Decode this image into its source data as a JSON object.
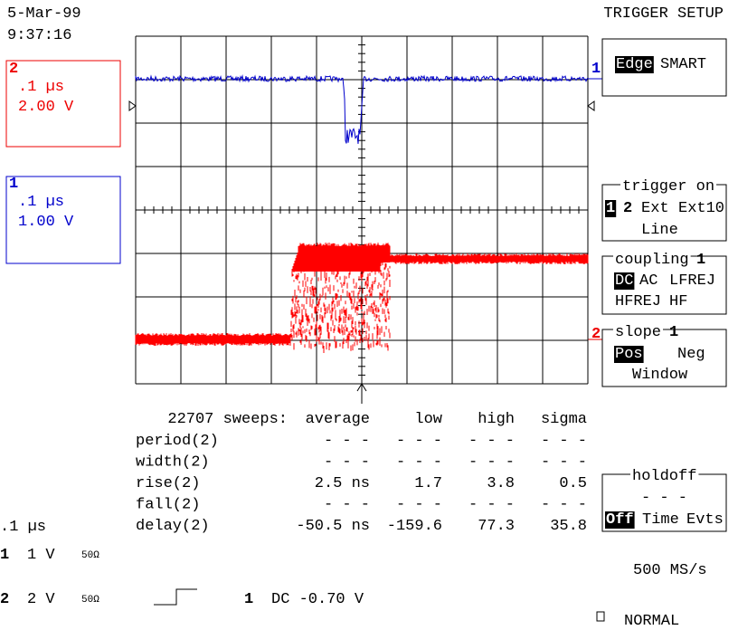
{
  "header": {
    "date": "5-Mar-99",
    "time": "9:37:16",
    "title": "TRIGGER SETUP"
  },
  "channels": [
    {
      "label": "2",
      "timebase": ".1 µs",
      "volts": "2.00 V"
    },
    {
      "label": "1",
      "timebase": ".1 µs",
      "volts": "1.00 V"
    }
  ],
  "trace_markers": [
    "1",
    "2"
  ],
  "menu": {
    "mode": {
      "selected": "Edge",
      "other": "SMART"
    },
    "trigger_on": {
      "title": "trigger on",
      "options": [
        "1",
        "2",
        "Ext",
        "Ext10",
        "Line"
      ]
    },
    "coupling": {
      "title": "coupling",
      "channel": "1",
      "options": [
        "DC",
        "AC",
        "LFREJ",
        "HFREJ",
        "HF"
      ]
    },
    "slope": {
      "title": "slope",
      "channel": "1",
      "options": [
        "Pos",
        "Neg",
        "Window"
      ]
    },
    "holdoff": {
      "title": "holdoff",
      "value": "- - -",
      "options": [
        "Off",
        "Time",
        "Evts"
      ]
    }
  },
  "measurements": {
    "header": [
      "22707 sweeps:",
      "average",
      "low",
      "high",
      "sigma"
    ],
    "rows": [
      [
        "period(2)",
        "- - -",
        "- - -",
        "- - -",
        "- - -"
      ],
      [
        "width(2)",
        "- - -",
        "- - -",
        "- - -",
        "- - -"
      ],
      [
        "rise(2)",
        "2.5 ns",
        "1.7",
        "3.8",
        "0.5"
      ],
      [
        "fall(2)",
        "- - -",
        "- - -",
        "- - -",
        "- - -"
      ],
      [
        "delay(2)",
        "-50.5 ns",
        "-159.6",
        "77.3",
        "35.8"
      ]
    ]
  },
  "status": {
    "timebase": ".1 µs",
    "ch1": [
      "1",
      "1  V",
      "50Ω"
    ],
    "ch2": [
      "2",
      "2  V",
      "50Ω"
    ],
    "trigger": [
      "1",
      "DC -0.70 V"
    ],
    "sample_rate": "500 MS/s",
    "mode": "NORMAL"
  }
}
